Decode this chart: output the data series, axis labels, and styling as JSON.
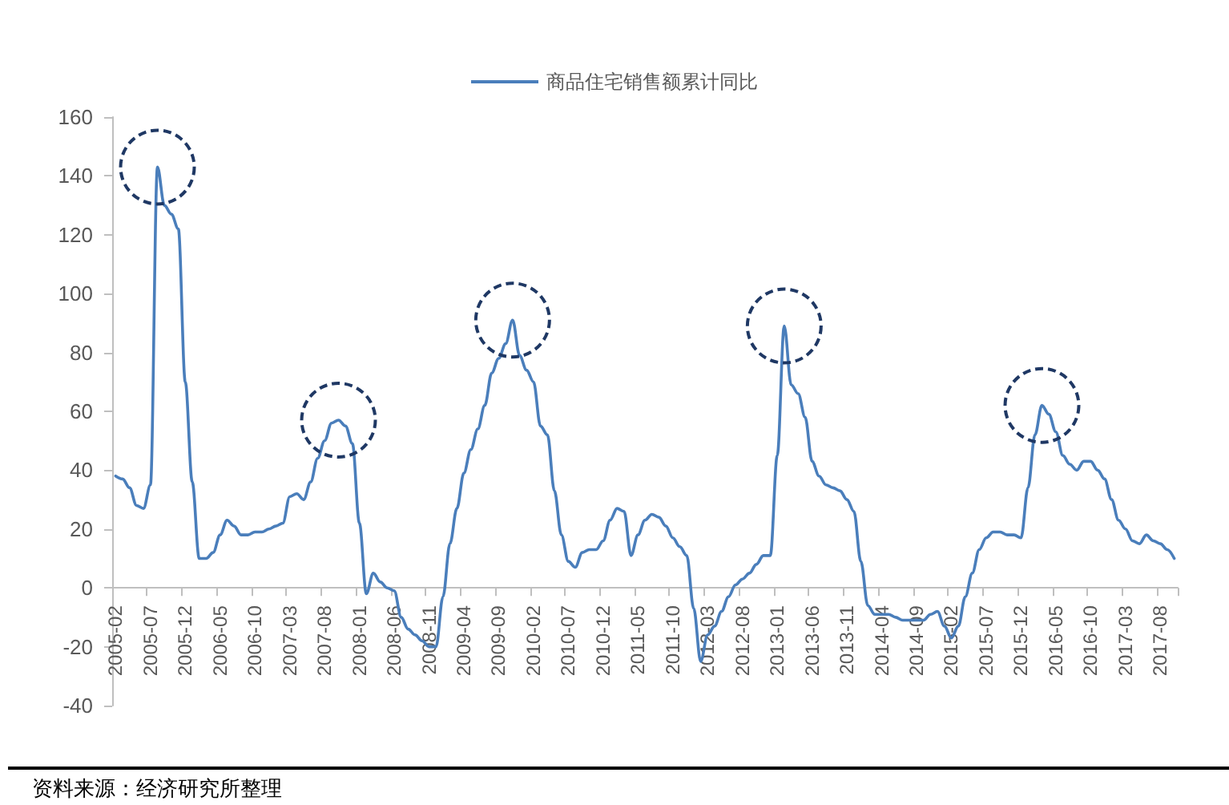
{
  "chart_data": {
    "type": "line",
    "categories": [
      "2005-02",
      null,
      null,
      null,
      null,
      "2005-07",
      null,
      null,
      null,
      null,
      "2005-12",
      null,
      null,
      null,
      null,
      "2006-05",
      null,
      null,
      null,
      null,
      "2006-10",
      null,
      null,
      null,
      null,
      "2007-03",
      null,
      null,
      null,
      null,
      "2007-08",
      null,
      null,
      null,
      null,
      "2008-01",
      null,
      null,
      null,
      null,
      "2008-06",
      null,
      null,
      null,
      null,
      "2008-11",
      null,
      null,
      null,
      null,
      "2009-04",
      null,
      null,
      null,
      null,
      "2009-09",
      null,
      null,
      null,
      null,
      "2010-02",
      null,
      null,
      null,
      null,
      "2010-07",
      null,
      null,
      null,
      null,
      "2010-12",
      null,
      null,
      null,
      null,
      "2011-05",
      null,
      null,
      null,
      null,
      "2011-10",
      null,
      null,
      null,
      null,
      "2012-03",
      null,
      null,
      null,
      null,
      "2012-08",
      null,
      null,
      null,
      null,
      "2013-01",
      null,
      null,
      null,
      null,
      "2013-06",
      null,
      null,
      null,
      null,
      "2013-11",
      null,
      null,
      null,
      null,
      "2014-04",
      null,
      null,
      null,
      null,
      "2014-09",
      null,
      null,
      null,
      null,
      "2015-02",
      null,
      null,
      null,
      null,
      "2015-07",
      null,
      null,
      null,
      null,
      "2015-12",
      null,
      null,
      null,
      null,
      "2016-05",
      null,
      null,
      null,
      null,
      "2016-10",
      null,
      null,
      null,
      null,
      "2017-03",
      null,
      null,
      null,
      null,
      "2017-08",
      null,
      null
    ],
    "series": [
      {
        "name": "商品住宅销售额累计同比",
        "color": "#4a7ebb",
        "values": [
          38,
          37,
          34,
          28,
          27,
          35,
          143,
          130,
          127,
          122,
          70,
          36,
          10,
          10,
          12,
          18,
          23,
          21,
          18,
          18,
          19,
          19,
          20,
          21,
          22,
          31,
          32,
          30,
          36,
          44,
          50,
          56,
          57,
          55,
          49,
          22,
          -2,
          5,
          2,
          0,
          -1,
          -10,
          -14,
          -16,
          -18,
          -20,
          -20,
          -3,
          15,
          27,
          39,
          47,
          54,
          62,
          73,
          78,
          83,
          91,
          79,
          74,
          70,
          55,
          52,
          33,
          18,
          9,
          7,
          12,
          13,
          13,
          16,
          23,
          27,
          26,
          11,
          18,
          23,
          25,
          24,
          21,
          17,
          14,
          11,
          -7,
          -25,
          -16,
          -13,
          -8,
          -3,
          1,
          3,
          5,
          8,
          11,
          11,
          45,
          89,
          69,
          66,
          58,
          43,
          38,
          35,
          34,
          33,
          30,
          26,
          9,
          -6,
          -9,
          -9,
          -9,
          -10,
          -11,
          -11,
          -11,
          -11,
          -9,
          -8,
          -13,
          -17,
          -13,
          -3,
          5,
          13,
          17,
          19,
          19,
          18,
          18,
          17,
          34,
          52,
          62,
          59,
          53,
          45,
          42,
          40,
          43,
          43,
          40,
          37,
          30,
          23,
          20,
          16,
          15,
          18,
          16,
          15,
          13,
          10
        ]
      }
    ],
    "ylim": [
      -40,
      160
    ],
    "yticks": [
      -40,
      -20,
      0,
      20,
      40,
      60,
      80,
      100,
      120,
      140,
      160
    ],
    "legend": "top",
    "annotations": [
      "资料来源：经济研究所整理"
    ]
  }
}
